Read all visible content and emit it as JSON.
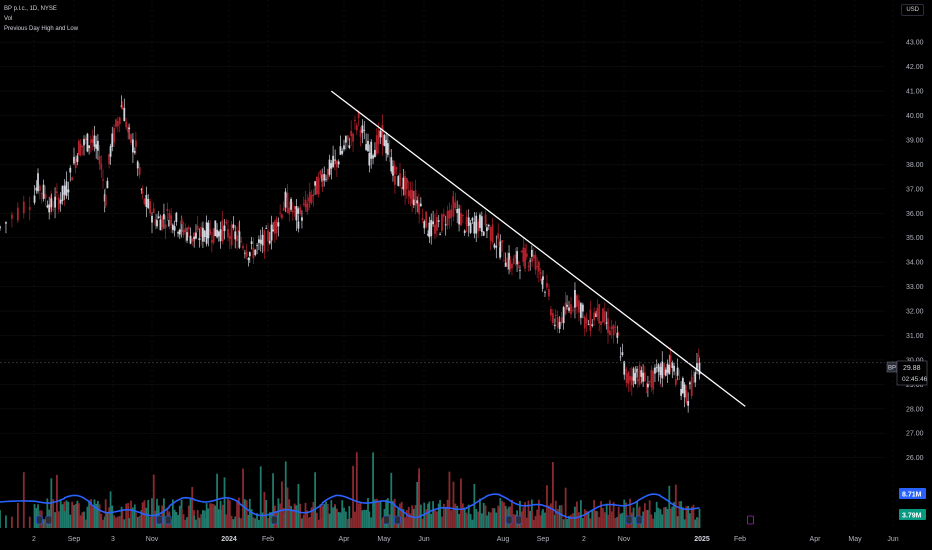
{
  "legend": {
    "symbol_line": "BP p.l.c., 1D, NYSE",
    "volume_label": "Vol",
    "indicator_label": "Previous Day High and Low"
  },
  "currency": "USD",
  "price_tag": {
    "symbol": "BP",
    "price": "29.88",
    "countdown": "02:45:46"
  },
  "volume_tags": {
    "average": "8.71M",
    "volume": "3.79M"
  },
  "colors": {
    "background": "#000000",
    "up": "#d1d4dc",
    "down": "#b2222d",
    "trendline": "#ffffff",
    "vol_up": "#1f7a6b",
    "vol_down": "#8a2a30",
    "vol_ma": "#2962ff",
    "badge_blue": "#2962ff",
    "badge_green": "#089981",
    "earnings_marker": "#9c27b0"
  },
  "chart_data": {
    "type": "candlestick",
    "symbol": "BP p.l.c.",
    "interval": "1D",
    "exchange": "NYSE",
    "y_ticks": [
      43.0,
      42.0,
      41.0,
      40.0,
      39.0,
      38.0,
      37.0,
      36.0,
      35.0,
      34.0,
      33.0,
      32.0,
      31.0,
      30.0,
      29.0,
      28.0,
      27.0,
      26.0
    ],
    "y_tick_labels": [
      "43.00",
      "42.00",
      "41.00",
      "40.00",
      "39.00",
      "38.00",
      "37.00",
      "36.00",
      "35.00",
      "34.00",
      "33.00",
      "32.00",
      "31.00",
      "30.00",
      "29.00",
      "28.00",
      "27.00",
      "26.00"
    ],
    "ylim": [
      25.7,
      43.5
    ],
    "x_labels": [
      {
        "label": "2",
        "date": "2023-08-02",
        "bold": false
      },
      {
        "label": "Sep",
        "date": "2023-09-01",
        "bold": false
      },
      {
        "label": "3",
        "date": "2023-10-03",
        "bold": false
      },
      {
        "label": "Nov",
        "date": "2023-11-01",
        "bold": false
      },
      {
        "label": "2024",
        "date": "2024-01-02",
        "bold": true
      },
      {
        "label": "Feb",
        "date": "2024-02-01",
        "bold": false
      },
      {
        "label": "Apr",
        "date": "2024-04-01",
        "bold": false
      },
      {
        "label": "May",
        "date": "2024-05-01",
        "bold": false
      },
      {
        "label": "Jun",
        "date": "2024-06-03",
        "bold": false
      },
      {
        "label": "Aug",
        "date": "2024-08-01",
        "bold": false
      },
      {
        "label": "Sep",
        "date": "2024-09-03",
        "bold": false
      },
      {
        "label": "2",
        "date": "2024-10-02",
        "bold": false
      },
      {
        "label": "Nov",
        "date": "2024-11-01",
        "bold": false
      },
      {
        "label": "2025",
        "date": "2025-01-02",
        "bold": true
      },
      {
        "label": "Feb",
        "date": "2025-02-03",
        "bold": false
      },
      {
        "label": "Apr",
        "date": "2025-04-01",
        "bold": false
      },
      {
        "label": "May",
        "date": "2025-05-01",
        "bold": false
      },
      {
        "label": "Jun",
        "date": "2025-06-02",
        "bold": false
      }
    ],
    "price_path": [
      [
        "2023-07-25",
        35.4
      ],
      [
        "2023-08-05",
        37.2
      ],
      [
        "2023-08-15",
        36.3
      ],
      [
        "2023-08-25",
        36.8
      ],
      [
        "2023-09-05",
        38.7
      ],
      [
        "2023-09-15",
        39.0
      ],
      [
        "2023-09-22",
        38.4
      ],
      [
        "2023-09-27",
        36.6
      ],
      [
        "2023-10-01",
        38.6
      ],
      [
        "2023-10-10",
        40.5
      ],
      [
        "2023-10-15",
        39.1
      ],
      [
        "2023-10-20",
        38.6
      ],
      [
        "2023-10-25",
        36.6
      ],
      [
        "2023-11-05",
        35.7
      ],
      [
        "2023-11-15",
        35.9
      ],
      [
        "2023-11-25",
        35.4
      ],
      [
        "2023-12-05",
        35.0
      ],
      [
        "2023-12-15",
        35.2
      ],
      [
        "2023-12-28",
        35.3
      ],
      [
        "2024-01-10",
        35.0
      ],
      [
        "2024-01-18",
        34.4
      ],
      [
        "2024-01-25",
        34.6
      ],
      [
        "2024-02-05",
        35.3
      ],
      [
        "2024-02-15",
        36.5
      ],
      [
        "2024-02-25",
        35.8
      ],
      [
        "2024-03-05",
        36.5
      ],
      [
        "2024-03-15",
        37.5
      ],
      [
        "2024-03-25",
        38.0
      ],
      [
        "2024-04-05",
        39.0
      ],
      [
        "2024-04-12",
        39.8
      ],
      [
        "2024-04-20",
        38.4
      ],
      [
        "2024-04-30",
        39.2
      ],
      [
        "2024-05-10",
        37.6
      ],
      [
        "2024-05-20",
        37.0
      ],
      [
        "2024-05-30",
        36.4
      ],
      [
        "2024-06-07",
        35.3
      ],
      [
        "2024-06-15",
        35.5
      ],
      [
        "2024-06-25",
        36.3
      ],
      [
        "2024-07-05",
        35.4
      ],
      [
        "2024-07-12",
        35.6
      ],
      [
        "2024-07-20",
        35.5
      ],
      [
        "2024-07-30",
        34.6
      ],
      [
        "2024-08-07",
        33.9
      ],
      [
        "2024-08-15",
        34.1
      ],
      [
        "2024-08-25",
        34.3
      ],
      [
        "2024-09-03",
        33.4
      ],
      [
        "2024-09-12",
        31.4
      ],
      [
        "2024-09-20",
        32.0
      ],
      [
        "2024-09-27",
        32.6
      ],
      [
        "2024-10-04",
        31.4
      ],
      [
        "2024-10-12",
        32.0
      ],
      [
        "2024-10-20",
        31.4
      ],
      [
        "2024-10-28",
        30.8
      ],
      [
        "2024-11-03",
        29.2
      ],
      [
        "2024-11-12",
        29.5
      ],
      [
        "2024-11-20",
        29.0
      ],
      [
        "2024-11-30",
        29.5
      ],
      [
        "2024-12-08",
        29.8
      ],
      [
        "2024-12-15",
        29.1
      ],
      [
        "2024-12-22",
        28.5
      ],
      [
        "2024-12-31",
        29.88
      ]
    ],
    "last_close": 29.88,
    "trendline": {
      "start": [
        "2024-03-22",
        41.0
      ],
      "end": [
        "2025-02-07",
        28.1
      ]
    },
    "volume_panel": {
      "ma_line_label": "8.71M",
      "last_volume_label": "3.79M"
    }
  }
}
